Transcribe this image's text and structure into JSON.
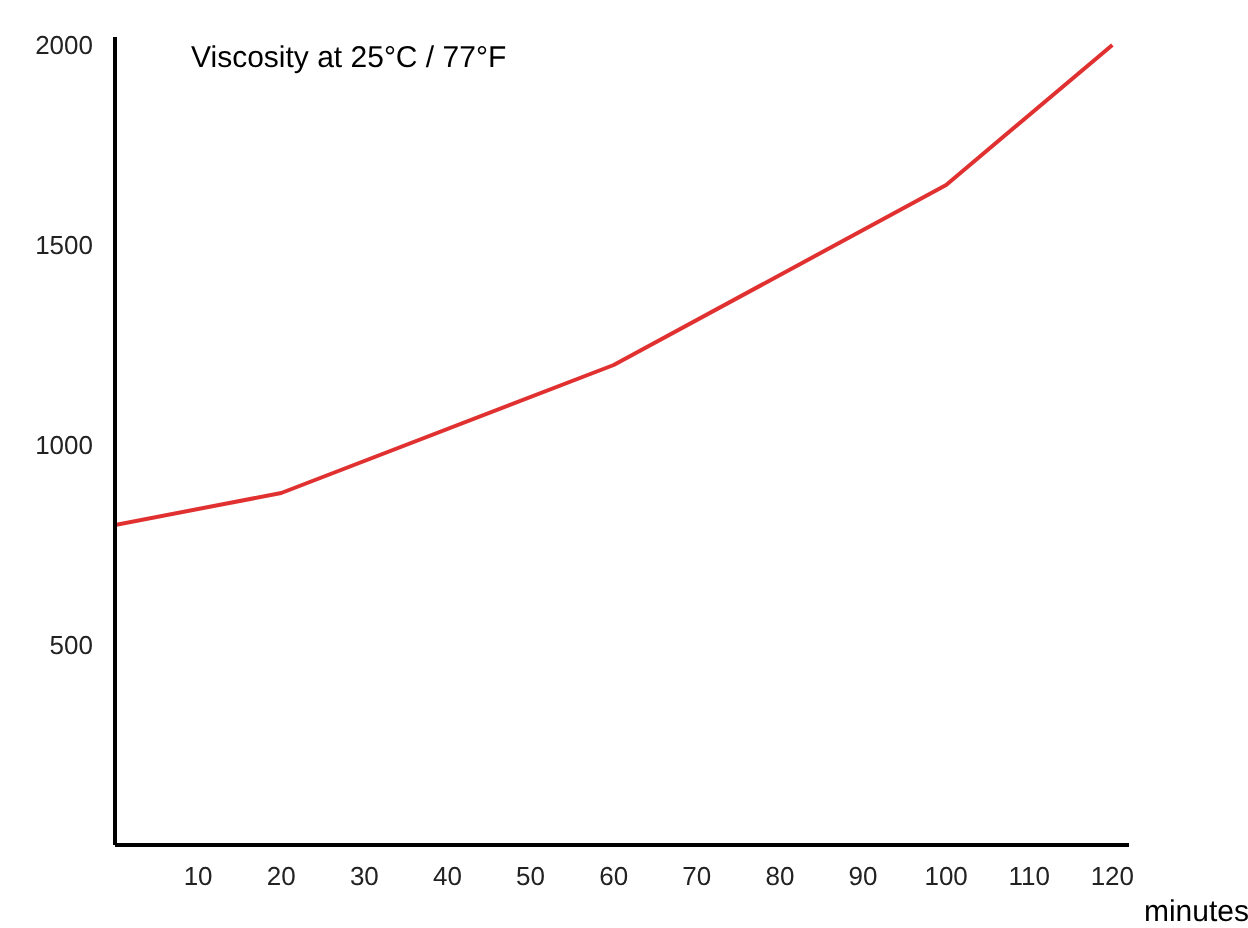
{
  "chart_data": {
    "type": "line",
    "title": "Viscosity at 25°C  / 77°F",
    "xlabel": "minutes",
    "x": [
      0,
      20,
      60,
      100,
      120
    ],
    "series": [
      {
        "color": "#e03030",
        "values": [
          800,
          880,
          1200,
          1650,
          2000
        ]
      }
    ],
    "xlim": [
      0,
      122
    ],
    "ylim": [
      0,
      2020
    ],
    "xticks": [
      10,
      20,
      30,
      40,
      50,
      60,
      70,
      80,
      90,
      100,
      110,
      120
    ],
    "yticks": [
      500,
      1000,
      1500,
      2000
    ],
    "grid": false,
    "marker": "none",
    "line_style": "solid"
  }
}
